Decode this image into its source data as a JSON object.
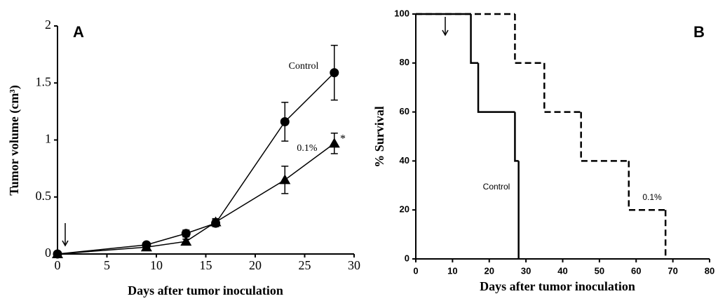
{
  "chart_data": [
    {
      "type": "line",
      "panel": "A",
      "x_label": "Days after tumor inoculation",
      "y_label": "Tumor volume (cm³)",
      "x": [
        0,
        9,
        13,
        16,
        23,
        28
      ],
      "series": [
        {
          "name": "Control",
          "color": "#000000",
          "marker": "circle",
          "values": [
            0,
            0.08,
            0.18,
            0.27,
            1.16,
            1.59
          ],
          "errors": [
            0.01,
            0.02,
            0.03,
            0.03,
            0.17,
            0.24
          ]
        },
        {
          "name": "0.1%",
          "color": "#000000",
          "marker": "triangle",
          "values": [
            0,
            0.06,
            0.11,
            0.28,
            0.65,
            0.97
          ],
          "errors": [
            0.01,
            0.01,
            0.02,
            0.03,
            0.12,
            0.09
          ]
        }
      ],
      "annotations": [
        "*"
      ],
      "xlim": [
        0,
        30
      ],
      "xticks": [
        0,
        5,
        10,
        15,
        20,
        25,
        30
      ],
      "ylim": [
        0,
        2
      ],
      "yticks": [
        0,
        0.5,
        1,
        1.5,
        2
      ]
    },
    {
      "type": "step",
      "panel": "B",
      "x_label": "Days after tumor inoculation",
      "y_label": "% Survival",
      "series": [
        {
          "name": "Control",
          "color": "#000000",
          "dashed": false,
          "x": [
            0,
            15,
            17,
            27,
            28
          ],
          "values": [
            100,
            80,
            60,
            40,
            0
          ]
        },
        {
          "name": "0.1%",
          "color": "#000000",
          "dashed": true,
          "x": [
            0,
            27,
            35,
            45,
            58,
            68
          ],
          "values": [
            100,
            80,
            60,
            40,
            20,
            0
          ]
        }
      ],
      "xlim": [
        0,
        80
      ],
      "xticks": [
        0,
        10,
        20,
        30,
        40,
        50,
        60,
        70,
        80
      ],
      "ylim": [
        0,
        100
      ],
      "yticks": [
        0,
        20,
        40,
        60,
        80,
        100
      ]
    }
  ]
}
